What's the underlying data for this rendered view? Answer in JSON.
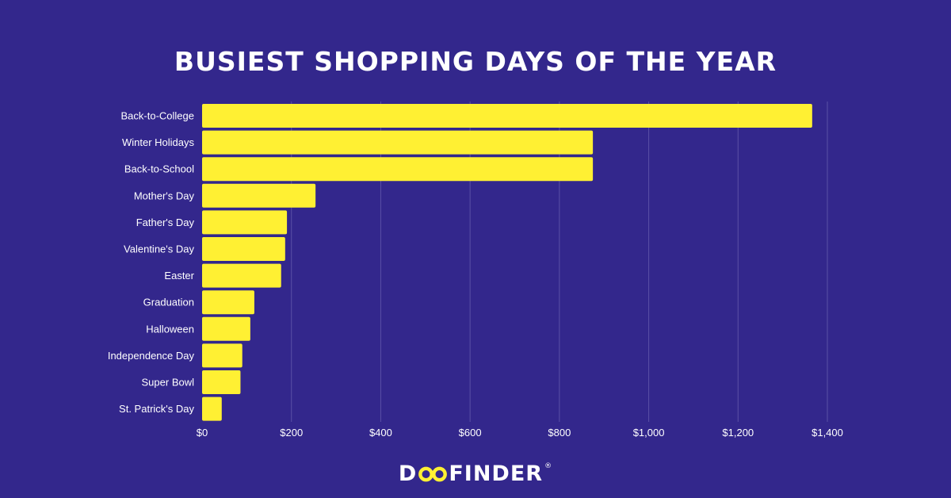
{
  "chart_data": {
    "type": "bar",
    "orientation": "horizontal",
    "title": "BUSIEST SHOPPING DAYS OF THE YEAR",
    "categories": [
      "Back-to-College",
      "Winter Holidays",
      "Back-to-School",
      "Mother's Day",
      "Father's Day",
      "Valentine's Day",
      "Easter",
      "Graduation",
      "Halloween",
      "Independence Day",
      "Super Bowl",
      "St. Patrick's Day"
    ],
    "values": [
      1366,
      875,
      875,
      254,
      190,
      186,
      177,
      117,
      108,
      90,
      86,
      44
    ],
    "xlim": [
      0,
      1400
    ],
    "x_ticks": [
      0,
      200,
      400,
      600,
      800,
      1000,
      1200,
      1400
    ],
    "x_tick_labels": [
      "$0",
      "$200",
      "$400",
      "$600",
      "$800",
      "$1,000",
      "$1,200",
      "$1,400"
    ],
    "grid": "vertical",
    "bar_color": "#fff033",
    "background": "#33278c"
  },
  "branding": {
    "logo_start": "D",
    "logo_end": "FINDER",
    "logo_reg": "®",
    "logo_ring_color": "#fff033"
  }
}
